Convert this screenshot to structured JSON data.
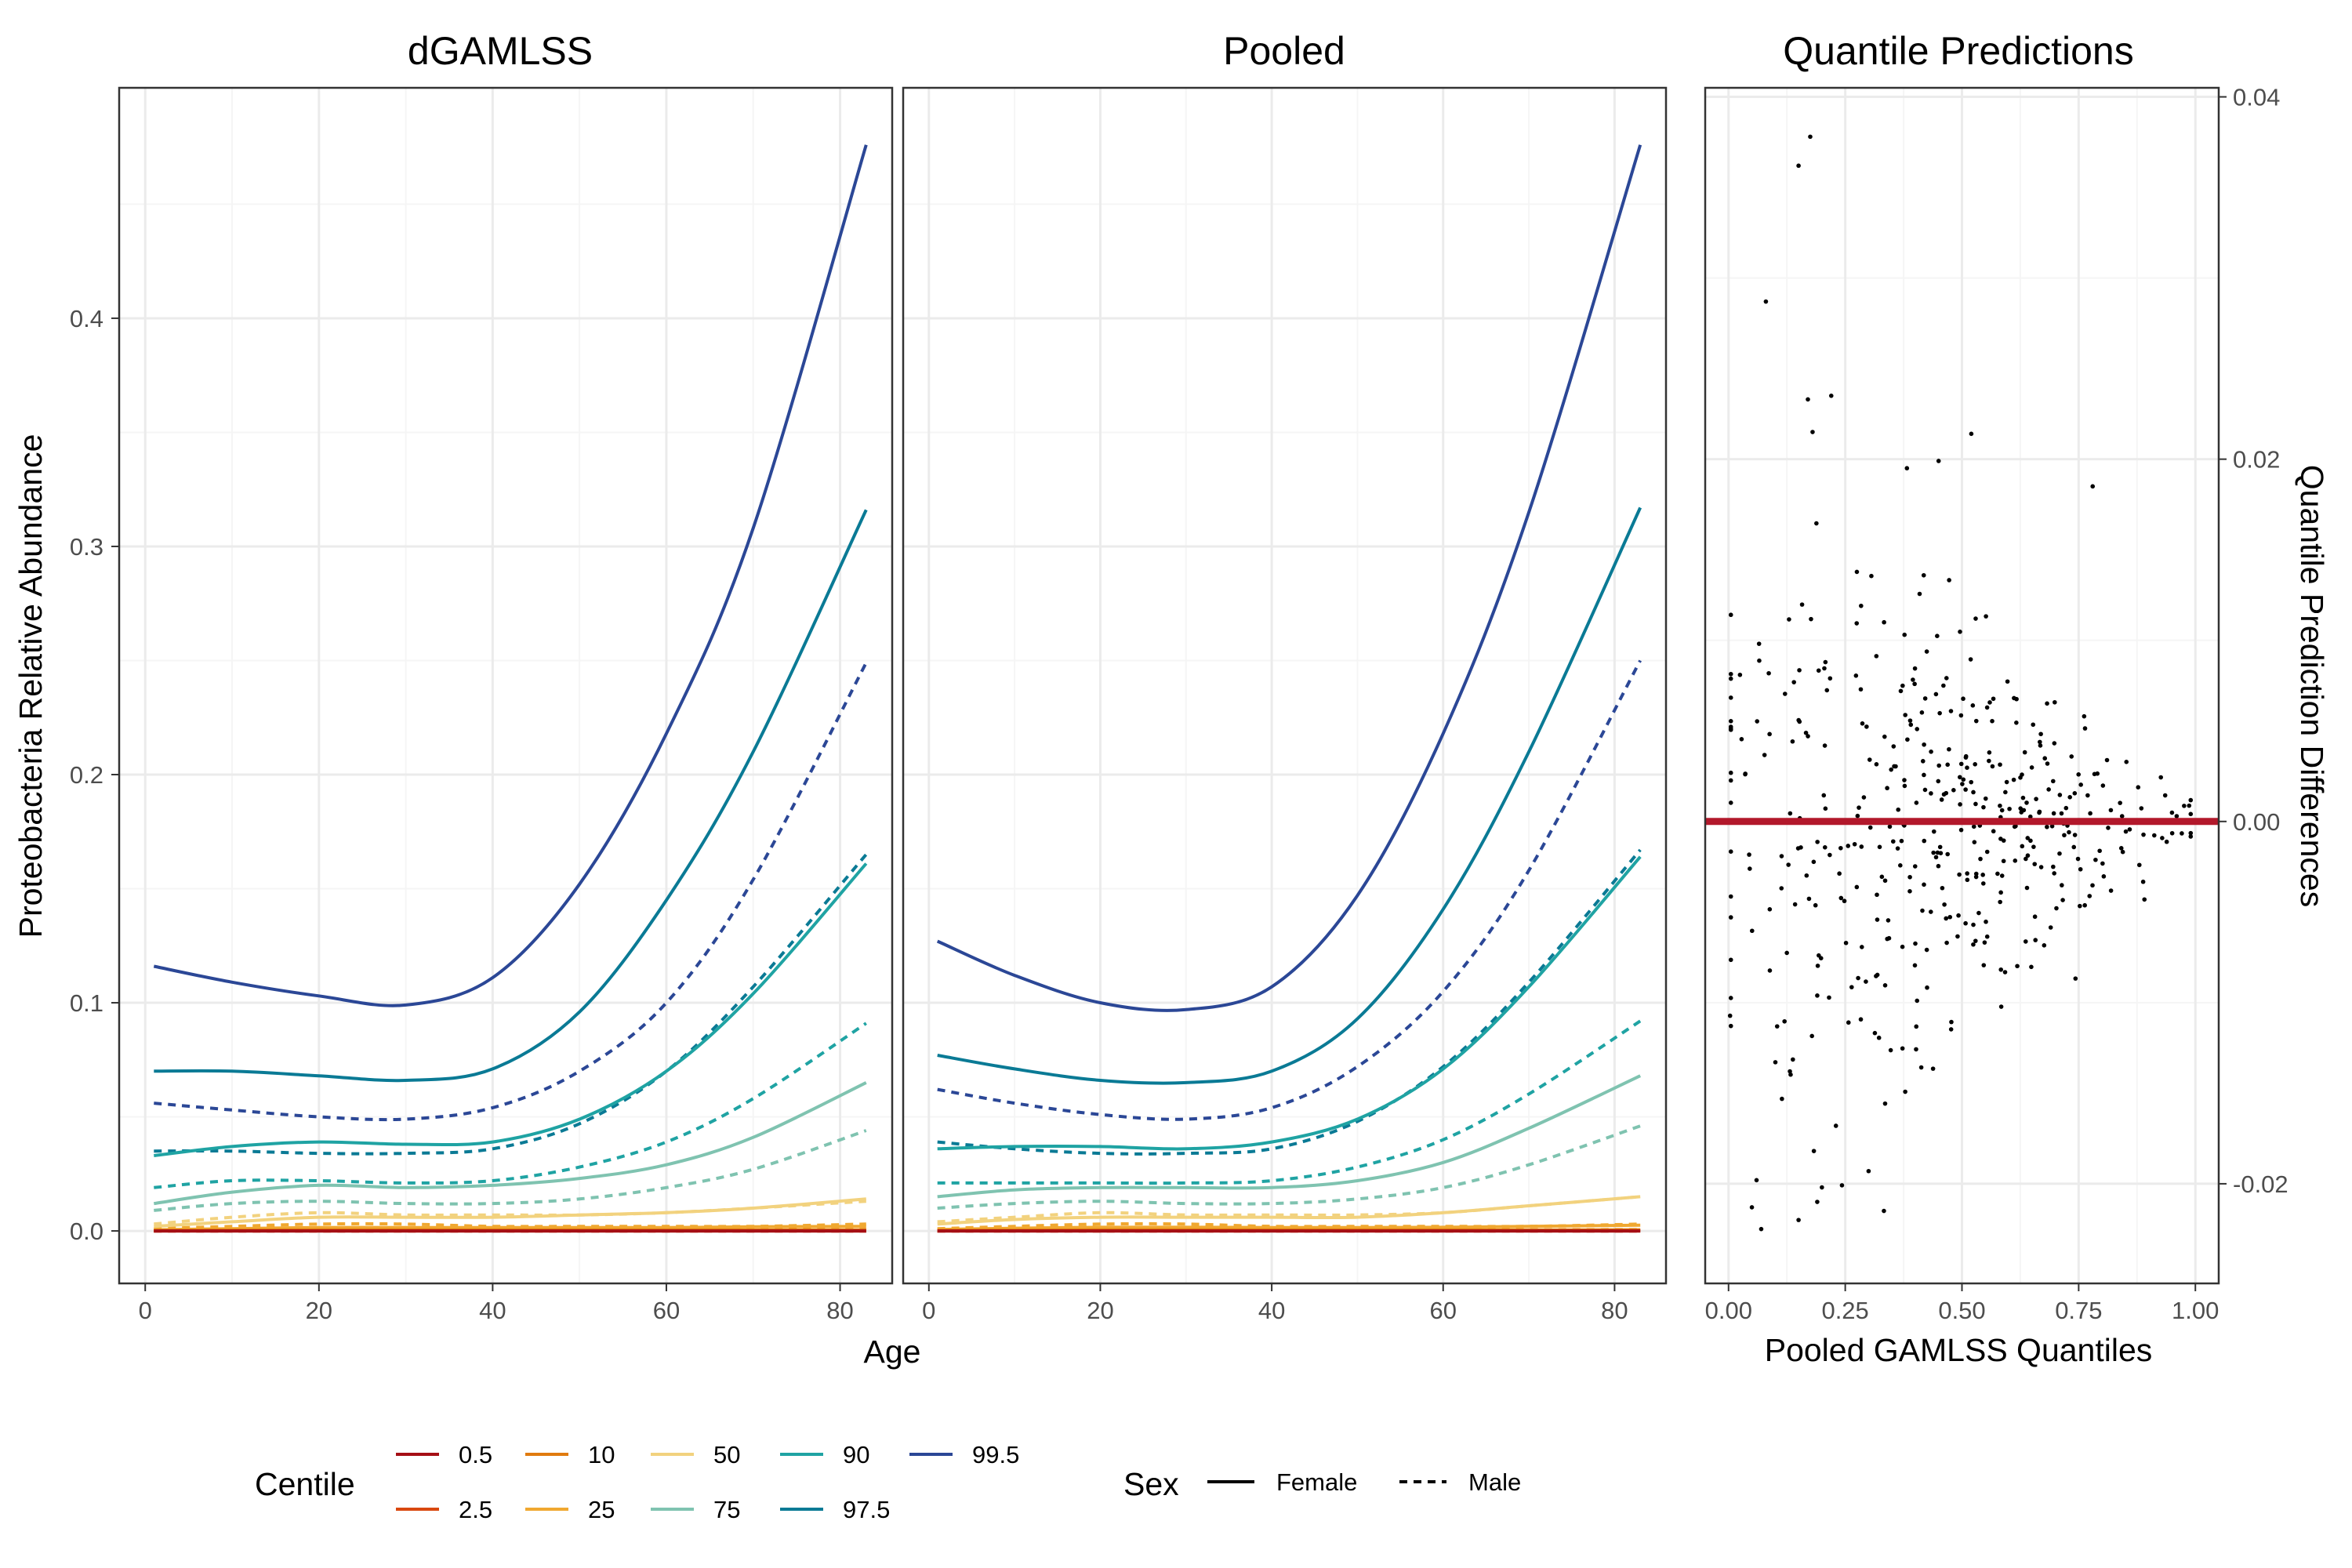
{
  "chart_data": [
    {
      "type": "line",
      "title": "dGAMLSS",
      "xlabel": "Age",
      "ylabel": "Proteobacteria Relative Abundance",
      "xlim": [
        -3,
        86
      ],
      "ylim": [
        -0.023,
        0.501
      ],
      "x_ticks": [
        0,
        20,
        40,
        60,
        80
      ],
      "y_ticks": [
        0.0,
        0.1,
        0.2,
        0.3,
        0.4
      ],
      "y_tick_labels": [
        "0.0",
        "0.1",
        "0.2",
        "0.3",
        "0.4"
      ],
      "grid": true,
      "x": [
        1,
        10,
        20,
        30,
        40,
        50,
        60,
        70,
        83
      ],
      "series": [
        {
          "centile": "99.5",
          "sex": "Female",
          "values": [
            0.116,
            0.109,
            0.103,
            0.099,
            0.111,
            0.152,
            0.218,
            0.308,
            0.476
          ]
        },
        {
          "centile": "97.5",
          "sex": "Female",
          "values": [
            0.07,
            0.07,
            0.068,
            0.066,
            0.071,
            0.096,
            0.145,
            0.21,
            0.316
          ]
        },
        {
          "centile": "90",
          "sex": "Female",
          "values": [
            0.033,
            0.037,
            0.039,
            0.038,
            0.039,
            0.049,
            0.07,
            0.104,
            0.161
          ]
        },
        {
          "centile": "75",
          "sex": "Female",
          "values": [
            0.012,
            0.017,
            0.02,
            0.019,
            0.02,
            0.023,
            0.029,
            0.041,
            0.065
          ]
        },
        {
          "centile": "50",
          "sex": "Female",
          "values": [
            0.002,
            0.004,
            0.006,
            0.006,
            0.006,
            0.007,
            0.008,
            0.01,
            0.014
          ]
        },
        {
          "centile": "25",
          "sex": "Female",
          "values": [
            0.0005,
            0.001,
            0.0015,
            0.0015,
            0.0015,
            0.0015,
            0.0015,
            0.0018,
            0.002
          ]
        },
        {
          "centile": "10",
          "sex": "Female",
          "values": [
            0.0002,
            0.0003,
            0.0004,
            0.0004,
            0.0004,
            0.0004,
            0.0004,
            0.0004,
            0.0004
          ]
        },
        {
          "centile": "2.5",
          "sex": "Female",
          "values": [
            0,
            0,
            0,
            0,
            0,
            0,
            0,
            0,
            0
          ]
        },
        {
          "centile": "0.5",
          "sex": "Female",
          "values": [
            0,
            0,
            0,
            0,
            0,
            0,
            0,
            0,
            0
          ]
        },
        {
          "centile": "99.5",
          "sex": "Male",
          "values": [
            0.056,
            0.053,
            0.05,
            0.049,
            0.054,
            0.07,
            0.1,
            0.154,
            0.249
          ]
        },
        {
          "centile": "97.5",
          "sex": "Male",
          "values": [
            0.035,
            0.035,
            0.034,
            0.034,
            0.036,
            0.047,
            0.07,
            0.107,
            0.165
          ]
        },
        {
          "centile": "90",
          "sex": "Male",
          "values": [
            0.019,
            0.022,
            0.022,
            0.021,
            0.022,
            0.028,
            0.039,
            0.058,
            0.091
          ]
        },
        {
          "centile": "75",
          "sex": "Male",
          "values": [
            0.009,
            0.012,
            0.013,
            0.012,
            0.012,
            0.014,
            0.019,
            0.027,
            0.044
          ]
        },
        {
          "centile": "50",
          "sex": "Male",
          "values": [
            0.003,
            0.006,
            0.008,
            0.007,
            0.007,
            0.007,
            0.008,
            0.01,
            0.013
          ]
        },
        {
          "centile": "25",
          "sex": "Male",
          "values": [
            0.001,
            0.002,
            0.003,
            0.003,
            0.002,
            0.002,
            0.002,
            0.002,
            0.003
          ]
        },
        {
          "centile": "10",
          "sex": "Male",
          "values": [
            0.0003,
            0.0005,
            0.0006,
            0.0006,
            0.0005,
            0.0005,
            0.0005,
            0.0005,
            0.0006
          ]
        },
        {
          "centile": "2.5",
          "sex": "Male",
          "values": [
            0,
            0,
            0,
            0,
            0,
            0,
            0,
            0,
            0
          ]
        },
        {
          "centile": "0.5",
          "sex": "Male",
          "values": [
            0,
            0,
            0,
            0,
            0,
            0,
            0,
            0,
            0
          ]
        }
      ]
    },
    {
      "type": "line",
      "title": "Pooled",
      "xlabel": "Age",
      "ylabel": "",
      "xlim": [
        -3,
        86
      ],
      "ylim": [
        -0.023,
        0.501
      ],
      "x_ticks": [
        0,
        20,
        40,
        60,
        80
      ],
      "y_ticks": [
        0.0,
        0.1,
        0.2,
        0.3,
        0.4
      ],
      "grid": true,
      "x": [
        1,
        10,
        20,
        30,
        40,
        50,
        60,
        70,
        83
      ],
      "series": [
        {
          "centile": "99.5",
          "sex": "Female",
          "values": [
            0.127,
            0.112,
            0.1,
            0.097,
            0.107,
            0.147,
            0.218,
            0.315,
            0.476
          ]
        },
        {
          "centile": "97.5",
          "sex": "Female",
          "values": [
            0.077,
            0.071,
            0.066,
            0.065,
            0.07,
            0.093,
            0.141,
            0.21,
            0.317
          ]
        },
        {
          "centile": "90",
          "sex": "Female",
          "values": [
            0.036,
            0.037,
            0.037,
            0.036,
            0.039,
            0.049,
            0.071,
            0.107,
            0.164
          ]
        },
        {
          "centile": "75",
          "sex": "Female",
          "values": [
            0.015,
            0.018,
            0.019,
            0.019,
            0.019,
            0.022,
            0.03,
            0.045,
            0.068
          ]
        },
        {
          "centile": "50",
          "sex": "Female",
          "values": [
            0.003,
            0.005,
            0.006,
            0.006,
            0.006,
            0.006,
            0.008,
            0.011,
            0.015
          ]
        },
        {
          "centile": "25",
          "sex": "Female",
          "values": [
            0.0006,
            0.0012,
            0.0016,
            0.0016,
            0.0015,
            0.0015,
            0.0016,
            0.002,
            0.0025
          ]
        },
        {
          "centile": "10",
          "sex": "Female",
          "values": [
            0.0002,
            0.0003,
            0.0004,
            0.0004,
            0.0004,
            0.0004,
            0.0004,
            0.0004,
            0.0005
          ]
        },
        {
          "centile": "2.5",
          "sex": "Female",
          "values": [
            0,
            0,
            0,
            0,
            0,
            0,
            0,
            0,
            0
          ]
        },
        {
          "centile": "0.5",
          "sex": "Female",
          "values": [
            0,
            0,
            0,
            0,
            0,
            0,
            0,
            0,
            0
          ]
        },
        {
          "centile": "99.5",
          "sex": "Male",
          "values": [
            0.062,
            0.056,
            0.051,
            0.049,
            0.054,
            0.072,
            0.105,
            0.158,
            0.25
          ]
        },
        {
          "centile": "97.5",
          "sex": "Male",
          "values": [
            0.039,
            0.036,
            0.034,
            0.034,
            0.036,
            0.048,
            0.072,
            0.109,
            0.167
          ]
        },
        {
          "centile": "90",
          "sex": "Male",
          "values": [
            0.021,
            0.021,
            0.021,
            0.021,
            0.022,
            0.028,
            0.04,
            0.06,
            0.092
          ]
        },
        {
          "centile": "75",
          "sex": "Male",
          "values": [
            0.01,
            0.012,
            0.013,
            0.012,
            0.012,
            0.014,
            0.019,
            0.029,
            0.046
          ]
        },
        {
          "centile": "50",
          "sex": "Male",
          "values": [
            0.004,
            0.006,
            0.008,
            0.007,
            0.007,
            0.007,
            0.008,
            0.011,
            0.015
          ]
        },
        {
          "centile": "25",
          "sex": "Male",
          "values": [
            0.001,
            0.002,
            0.003,
            0.003,
            0.002,
            0.002,
            0.002,
            0.002,
            0.003
          ]
        },
        {
          "centile": "10",
          "sex": "Male",
          "values": [
            0.0003,
            0.0005,
            0.0006,
            0.0006,
            0.0005,
            0.0005,
            0.0005,
            0.0005,
            0.0006
          ]
        },
        {
          "centile": "2.5",
          "sex": "Male",
          "values": [
            0,
            0,
            0,
            0,
            0,
            0,
            0,
            0,
            0
          ]
        },
        {
          "centile": "0.5",
          "sex": "Male",
          "values": [
            0,
            0,
            0,
            0,
            0,
            0,
            0,
            0,
            0
          ]
        }
      ]
    },
    {
      "type": "scatter",
      "title": "Quantile Predictions",
      "xlabel": "Pooled GAMLSS Quantiles",
      "ylabel": "Quantile Prediction Differences",
      "xlim": [
        -0.05,
        1.05
      ],
      "ylim": [
        -0.0255,
        0.0405
      ],
      "x_ticks": [
        0.0,
        0.25,
        0.5,
        0.75,
        1.0
      ],
      "x_tick_labels": [
        "0.00",
        "0.25",
        "0.50",
        "0.75",
        "1.00"
      ],
      "y_ticks": [
        -0.02,
        0.0,
        0.02,
        0.04
      ],
      "y_tick_labels": [
        "-0.02",
        "0.00",
        "0.02",
        "0.04"
      ],
      "y_axis_position": "right",
      "reference_line": {
        "y": 0.0,
        "color": "#b2182b"
      },
      "grid": true,
      "approx_points": 420,
      "extreme_points": [
        [
          0.15,
          0.0362
        ],
        [
          0.175,
          0.0378
        ],
        [
          0.08,
          0.0287
        ],
        [
          0.17,
          0.0233
        ],
        [
          0.22,
          0.0235
        ],
        [
          0.18,
          0.0215
        ],
        [
          0.52,
          0.0214
        ],
        [
          0.45,
          0.0199
        ],
        [
          0.78,
          0.0185
        ],
        [
          0.06,
          -0.0198
        ],
        [
          0.05,
          -0.0213
        ],
        [
          0.07,
          -0.0225
        ],
        [
          0.15,
          -0.022
        ],
        [
          0.19,
          -0.021
        ],
        [
          0.2,
          -0.0202
        ],
        [
          0.23,
          -0.0168
        ],
        [
          0.3,
          -0.0193
        ]
      ]
    }
  ],
  "legend": {
    "centile_title": "Centile",
    "centile_items": [
      {
        "label": "0.5",
        "color": "#a50f15"
      },
      {
        "label": "2.5",
        "color": "#d9480f"
      },
      {
        "label": "10",
        "color": "#e07b0f"
      },
      {
        "label": "25",
        "color": "#f0a830"
      },
      {
        "label": "50",
        "color": "#f2d27e"
      },
      {
        "label": "75",
        "color": "#7fc3b0"
      },
      {
        "label": "90",
        "color": "#1fa3a3"
      },
      {
        "label": "97.5",
        "color": "#0a7a95"
      },
      {
        "label": "99.5",
        "color": "#2b4796"
      }
    ],
    "sex_title": "Sex",
    "sex_items": [
      {
        "label": "Female",
        "dash": "solid"
      },
      {
        "label": "Male",
        "dash": "dashed"
      }
    ]
  },
  "colors": {
    "panel_border": "#333333",
    "grid_major": "#ebebeb",
    "grid_minor": "#f5f5f5",
    "points": "#000000",
    "reference_line": "#b2182b"
  }
}
